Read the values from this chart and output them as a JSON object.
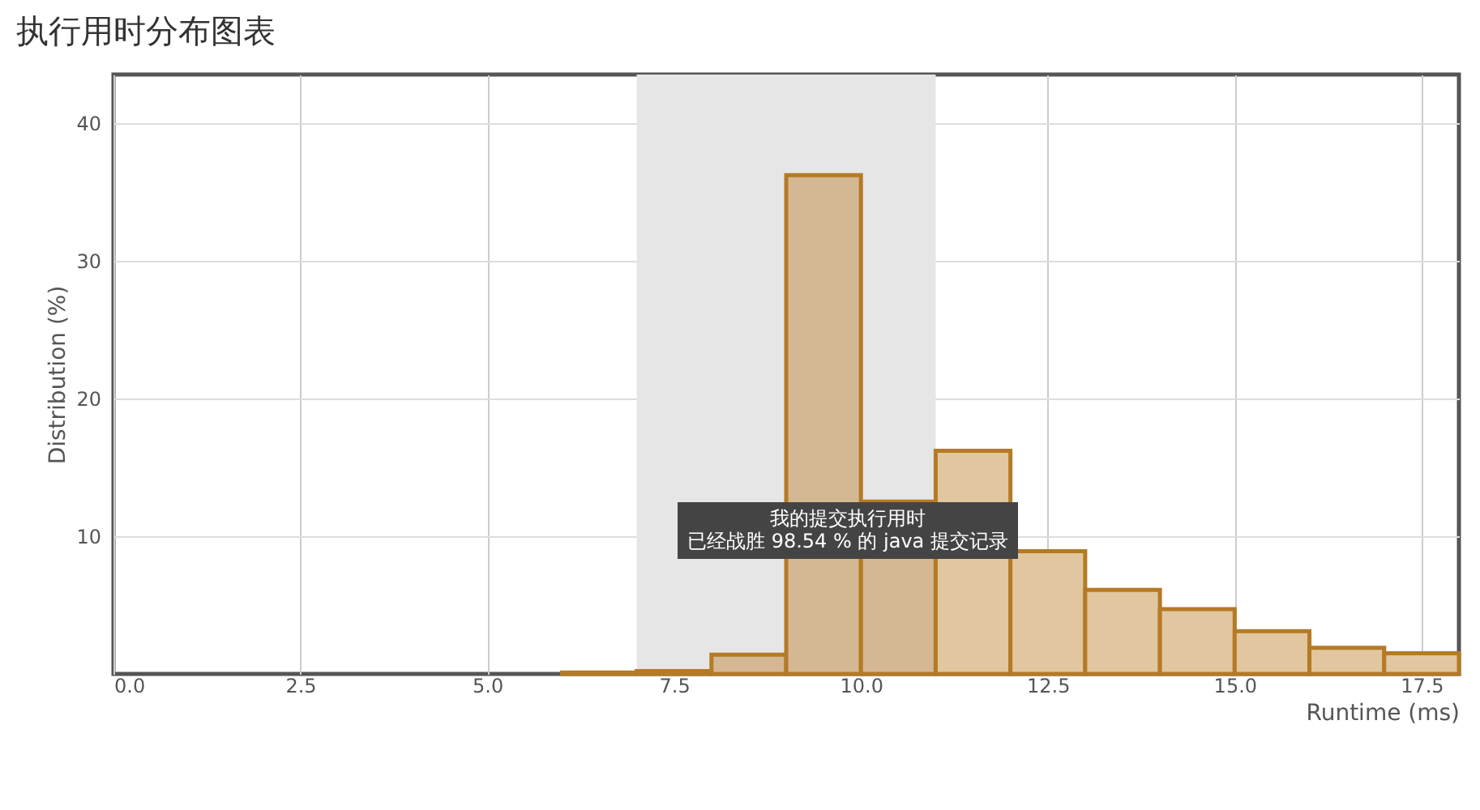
{
  "chart_data": {
    "type": "histogram",
    "title": "执行用时分布图表",
    "xlabel": "Runtime (ms)",
    "ylabel": "Distribution (%)",
    "bins": [
      6,
      7,
      8,
      9,
      10,
      11,
      12,
      13,
      14,
      15,
      16,
      17,
      18
    ],
    "values": [
      0.1,
      0.2,
      1.4,
      36.2,
      12.5,
      16.2,
      8.9,
      6.1,
      4.7,
      3.1,
      1.9,
      1.5
    ],
    "colors": [
      "#e0c7a0",
      "#d3b893",
      "#d3b893",
      "#d3b893",
      "#d3b893",
      "#e0c7a0",
      "#e0c7a0",
      "#e0c7a0",
      "#e0c7a0",
      "#e0c7a0",
      "#e0c7a0",
      "#e0c7a0"
    ],
    "xlim": [
      0,
      18
    ],
    "ylim": [
      0,
      43.5
    ],
    "xticks": [
      {
        "value": 0,
        "label": "0.0"
      },
      {
        "value": 2.5,
        "label": "2.5"
      },
      {
        "value": 5,
        "label": "5.0"
      },
      {
        "value": 7.5,
        "label": "7.5"
      },
      {
        "value": 10,
        "label": "10.0"
      },
      {
        "value": 12.5,
        "label": "12.5"
      },
      {
        "value": 15,
        "label": "15.0"
      },
      {
        "value": 17.5,
        "label": "17.5"
      }
    ],
    "yticks": [
      10,
      20,
      30,
      40
    ],
    "grid": true,
    "bands": [
      {
        "axis": "x",
        "from": 7,
        "to": 11,
        "color": "#e6e6e6"
      }
    ],
    "annotations": [
      "我的提交执行用时",
      "已经战胜 98.54 % 的 java 提交记录"
    ]
  }
}
